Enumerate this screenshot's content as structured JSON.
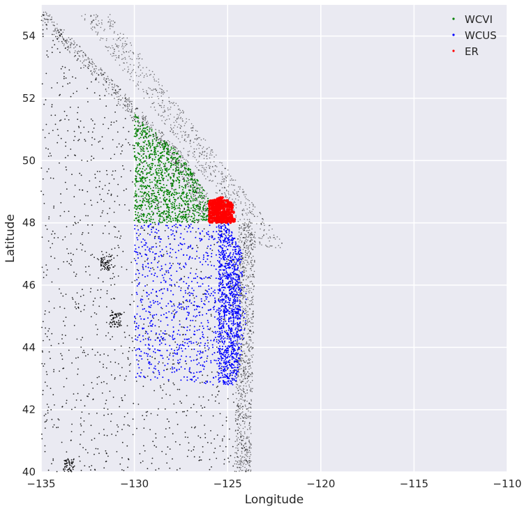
{
  "chart_data": {
    "type": "scatter",
    "title": "",
    "xlabel": "Longitude",
    "ylabel": "Latitude",
    "xlim": [
      -135,
      -110
    ],
    "ylim": [
      40,
      55
    ],
    "xticks": [
      -135,
      -130,
      -125,
      -120,
      -115,
      -110
    ],
    "xtick_labels": [
      "−135",
      "−130",
      "−125",
      "−120",
      "−115",
      "−110"
    ],
    "yticks": [
      40,
      42,
      44,
      46,
      48,
      50,
      52,
      54
    ],
    "ytick_labels": [
      "40",
      "42",
      "44",
      "46",
      "48",
      "50",
      "52",
      "54"
    ],
    "grid": true,
    "background": "#EAEAF2",
    "grid_color": "#FFFFFF",
    "legend_position": "top-right",
    "series": [
      {
        "name": "WCVI",
        "color": "#008000",
        "region": {
          "shape": "polygon",
          "vertices": [
            [
              -130,
              48
            ],
            [
              -130,
              51.5
            ],
            [
              -127.5,
              50.2
            ],
            [
              -126,
              48.8
            ],
            [
              -126,
              48
            ]
          ]
        }
      },
      {
        "name": "WCUS",
        "color": "#0000FF",
        "region": {
          "shape": "polygon",
          "vertices": [
            [
              -130,
              43
            ],
            [
              -130,
              48
            ],
            [
              -125,
              48
            ],
            [
              -124.2,
              47
            ],
            [
              -123.9,
              45
            ],
            [
              -124.3,
              43.5
            ],
            [
              -124.6,
              42.8
            ],
            [
              -126,
              42.8
            ]
          ]
        }
      },
      {
        "name": "ER",
        "color": "#FF0000",
        "region": {
          "shape": "polygon",
          "vertices": [
            [
              -126,
              48
            ],
            [
              -126,
              48.7
            ],
            [
              -125.3,
              48.85
            ],
            [
              -124.7,
              48.6
            ],
            [
              -124.6,
              48
            ]
          ]
        }
      }
    ],
    "background_points": {
      "color": "#000000",
      "extent_lon": [
        -135,
        -122.5
      ],
      "extent_lat": [
        40,
        55
      ]
    }
  }
}
